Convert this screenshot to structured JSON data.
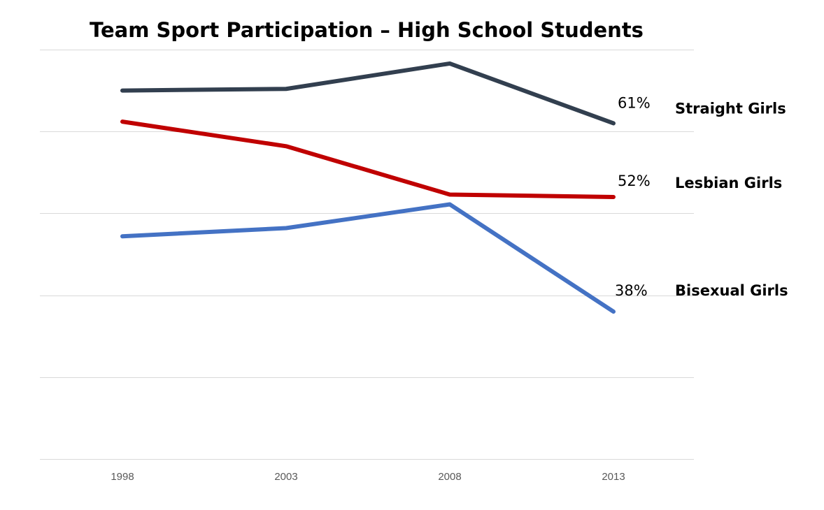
{
  "chart_data": {
    "type": "line",
    "title": "Team Sport Participation – High School Students",
    "xlabel": "",
    "ylabel": "",
    "categories": [
      "1998",
      "2003",
      "2008",
      "2013"
    ],
    "ylim": [
      20,
      70
    ],
    "grid": true,
    "legend": "direct labels at right end of lines",
    "series": [
      {
        "name": "Straight Girls",
        "color": "#323f4f",
        "values": [
          65,
          65.2,
          68.3,
          61
        ],
        "end_label": "61%"
      },
      {
        "name": "Lesbian Girls",
        "color": "#c00000",
        "values": [
          61.2,
          58.2,
          52.3,
          52
        ],
        "end_label": "52%"
      },
      {
        "name": "Bisexual Girls",
        "color": "#4472c4",
        "values": [
          47.2,
          48.2,
          51.1,
          38
        ],
        "end_label": "38%"
      }
    ]
  }
}
